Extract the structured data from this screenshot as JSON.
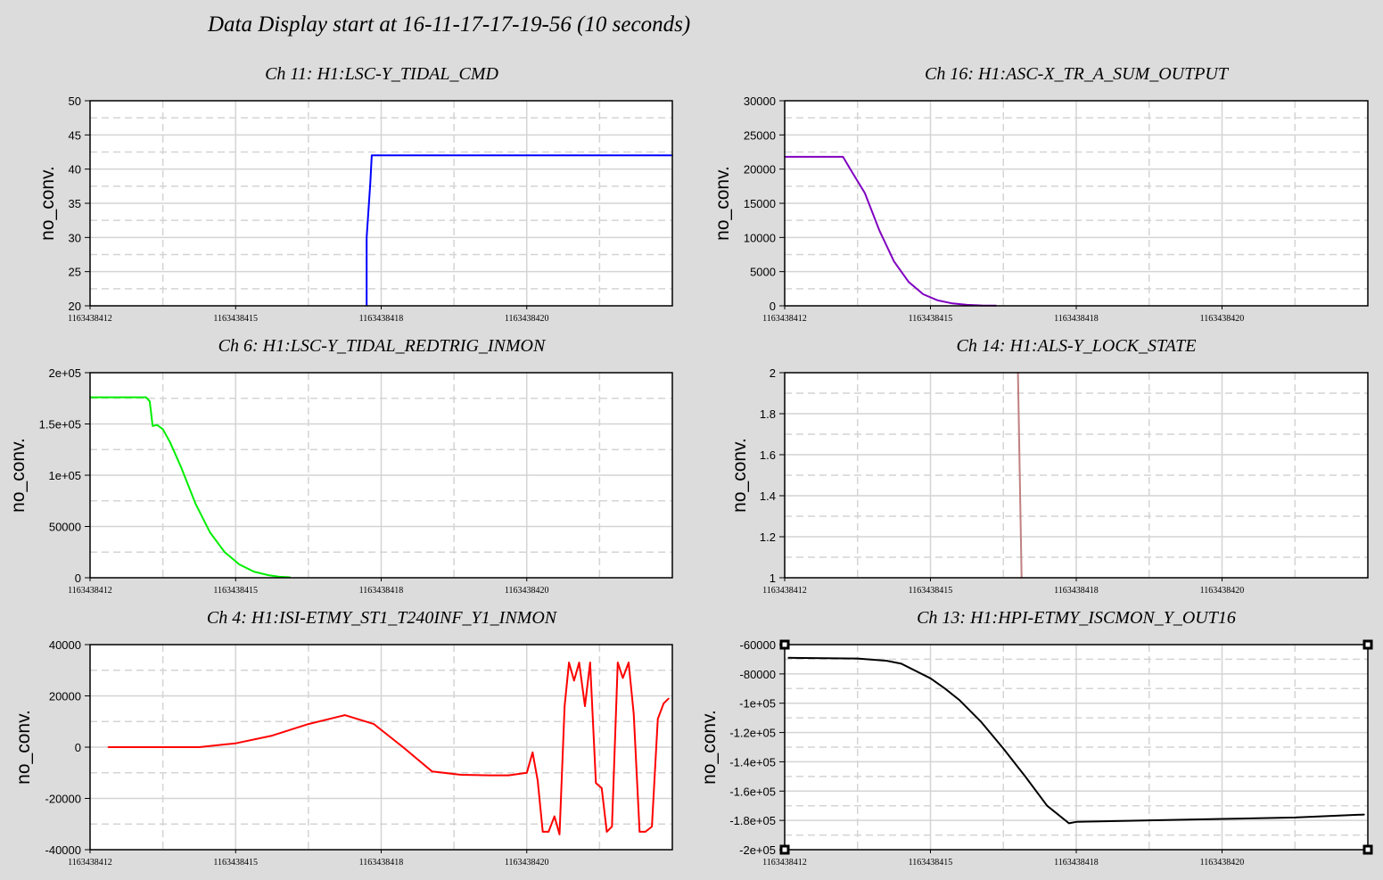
{
  "title": "Data Display start at 16-11-17-17-19-56 (10 seconds)",
  "chart_data": [
    {
      "type": "line",
      "title": "Ch 11: H1:LSC-Y_TIDAL_CMD",
      "ylabel": "no_conv.",
      "color": "#0000ff",
      "ylim": [
        20,
        50
      ],
      "yticks": [
        20,
        25,
        30,
        35,
        40,
        45,
        50
      ],
      "ytick_labels": [
        "20",
        "25",
        "30",
        "35",
        "40",
        "45",
        "50"
      ],
      "xlim": [
        0,
        8
      ],
      "xticks": [
        0,
        2,
        4,
        6
      ],
      "xtick_labels": [
        "1163438412",
        "1163438415",
        "1163438418",
        "1163438420"
      ],
      "x": [
        3.8,
        3.8,
        3.85,
        3.87,
        8
      ],
      "y": [
        20,
        30,
        38,
        42,
        42
      ]
    },
    {
      "type": "line",
      "title": "Ch 16: H1:ASC-X_TR_A_SUM_OUTPUT",
      "ylabel": "no_conv.",
      "color": "#8000c0",
      "ylim": [
        0,
        30000
      ],
      "yticks": [
        0,
        5000,
        10000,
        15000,
        20000,
        25000,
        30000
      ],
      "ytick_labels": [
        "0",
        "5000",
        "10000",
        "15000",
        "20000",
        "25000",
        "30000"
      ],
      "xlim": [
        0,
        8
      ],
      "xticks": [
        0,
        2,
        4,
        6
      ],
      "xtick_labels": [
        "1163438412",
        "1163438415",
        "1163438418",
        "1163438420"
      ],
      "x": [
        0,
        0.8,
        0.9,
        1.1,
        1.3,
        1.5,
        1.7,
        1.9,
        2.1,
        2.3,
        2.5,
        2.7,
        2.9
      ],
      "y": [
        21800,
        21800,
        20000,
        16500,
        11000,
        6500,
        3500,
        1700,
        800,
        350,
        150,
        50,
        30
      ]
    },
    {
      "type": "line",
      "title": "Ch 6: H1:LSC-Y_TIDAL_REDTRIG_INMON",
      "ylabel": "no_conv.",
      "color": "#00ee00",
      "ylim": [
        0,
        200000
      ],
      "yticks": [
        0,
        50000,
        100000,
        150000,
        200000
      ],
      "ytick_labels": [
        "0",
        "50000",
        "1e+05",
        "1.5e+05",
        "2e+05"
      ],
      "xlim": [
        0,
        8
      ],
      "xticks": [
        0,
        2,
        4,
        6
      ],
      "xtick_labels": [
        "1163438412",
        "1163438415",
        "1163438418",
        "1163438420"
      ],
      "x": [
        0,
        0.77,
        0.82,
        0.86,
        0.92,
        1.0,
        1.1,
        1.25,
        1.45,
        1.65,
        1.85,
        2.05,
        2.25,
        2.45,
        2.6,
        2.75
      ],
      "y": [
        176000,
        176000,
        172000,
        148000,
        149000,
        145000,
        132000,
        108000,
        72000,
        44000,
        25000,
        13000,
        6000,
        2500,
        1000,
        400
      ]
    },
    {
      "type": "line",
      "title": "Ch 14: H1:ALS-Y_LOCK_STATE",
      "ylabel": "no_conv.",
      "color": "#c08080",
      "ylim": [
        1,
        2
      ],
      "yticks": [
        1,
        1.2,
        1.4,
        1.6,
        1.8,
        2
      ],
      "ytick_labels": [
        "1",
        "1.2",
        "1.4",
        "1.6",
        "1.8",
        "2"
      ],
      "xlim": [
        0,
        8
      ],
      "xticks": [
        0,
        2,
        4,
        6
      ],
      "xtick_labels": [
        "1163438412",
        "1163438415",
        "1163438418",
        "1163438420"
      ],
      "x": [
        3.2,
        3.25
      ],
      "y": [
        2,
        1
      ]
    },
    {
      "type": "line",
      "title": "Ch 4: H1:ISI-ETMY_ST1_T240INF_Y1_INMON",
      "ylabel": "no_conv.",
      "color": "#ff0000",
      "ylim": [
        -40000,
        40000
      ],
      "yticks": [
        -40000,
        -20000,
        0,
        20000,
        40000
      ],
      "ytick_labels": [
        "-40000",
        "-20000",
        "0",
        "20000",
        "40000"
      ],
      "xlim": [
        0,
        8
      ],
      "xticks": [
        0,
        2,
        4,
        6
      ],
      "xtick_labels": [
        "1163438412",
        "1163438415",
        "1163438418",
        "1163438420"
      ],
      "x": [
        0.25,
        1.0,
        1.5,
        2.0,
        2.5,
        3.0,
        3.5,
        3.9,
        4.3,
        4.7,
        5.1,
        5.5,
        5.75,
        6.0,
        6.08,
        6.15,
        6.22,
        6.3,
        6.38,
        6.45,
        6.52,
        6.58,
        6.65,
        6.72,
        6.8,
        6.87,
        6.95,
        7.03,
        7.1,
        7.17,
        7.25,
        7.32,
        7.4,
        7.47,
        7.55,
        7.63,
        7.72,
        7.8,
        7.88,
        7.95
      ],
      "y": [
        0,
        0,
        0,
        1500,
        4500,
        9000,
        12500,
        9000,
        0,
        -9500,
        -10800,
        -11000,
        -11000,
        -10000,
        -2000,
        -13000,
        -33000,
        -33000,
        -27000,
        -34000,
        16000,
        33000,
        26000,
        33000,
        16000,
        33000,
        -14000,
        -16000,
        -33000,
        -31000,
        33000,
        27000,
        33000,
        13000,
        -33000,
        -33000,
        -31000,
        11000,
        17000,
        19000
      ]
    },
    {
      "type": "line",
      "title": "Ch 13: H1:HPI-ETMY_ISCMON_Y_OUT16",
      "ylabel": "no_conv.",
      "color": "#000000",
      "ylim": [
        -200000,
        -60000
      ],
      "yticks": [
        -200000,
        -180000,
        -160000,
        -140000,
        -120000,
        -100000,
        -80000,
        -60000
      ],
      "ytick_labels": [
        "-2e+05",
        "-1.8e+05",
        "-1.6e+05",
        "-1.4e+05",
        "-1.2e+05",
        "-1e+05",
        "-80000",
        "-60000"
      ],
      "xlim": [
        0,
        8
      ],
      "xticks": [
        0,
        2,
        4,
        6
      ],
      "xtick_labels": [
        "1163438412",
        "1163438415",
        "1163438418",
        "1163438420"
      ],
      "x": [
        0.05,
        1.0,
        1.4,
        1.6,
        1.8,
        2.0,
        2.2,
        2.4,
        2.7,
        3.0,
        3.3,
        3.6,
        3.9,
        4.0,
        5.0,
        6.0,
        7.0,
        7.95
      ],
      "y": [
        -69000,
        -69500,
        -71000,
        -73000,
        -78000,
        -83000,
        -90000,
        -98000,
        -113000,
        -131000,
        -150000,
        -170000,
        -182000,
        -181000,
        -180000,
        -179000,
        -178000,
        -176000
      ]
    }
  ]
}
